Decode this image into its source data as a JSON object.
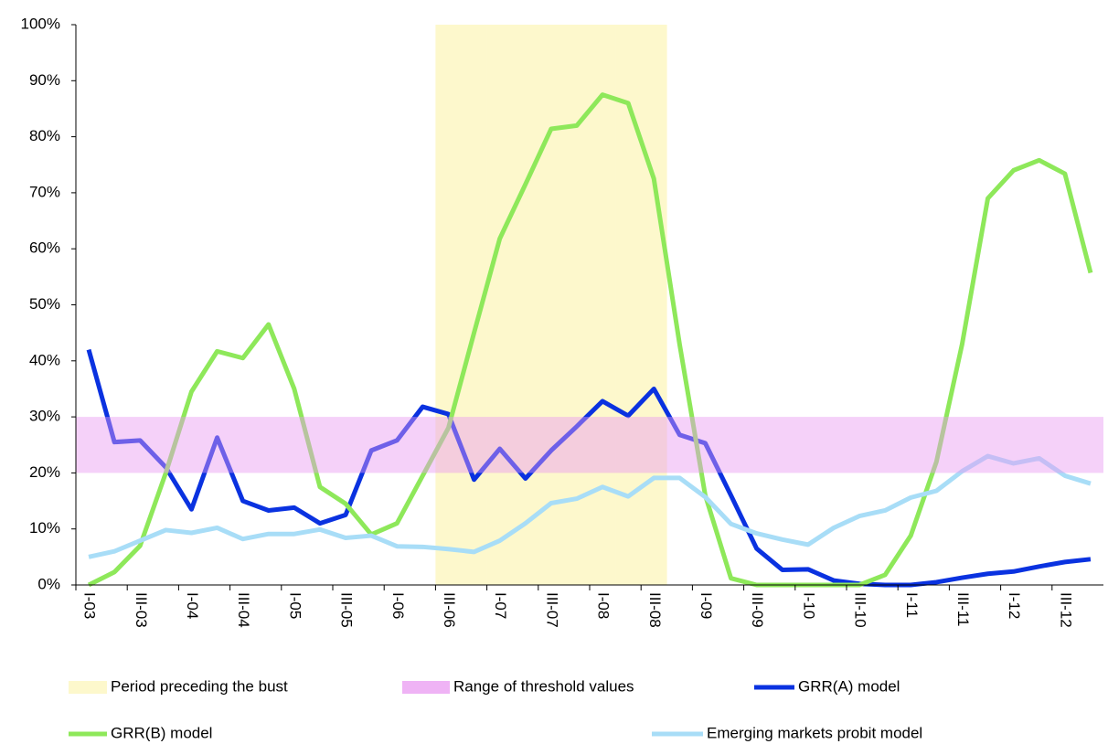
{
  "chart_data": {
    "type": "line",
    "categories": [
      "I-03",
      null,
      "III-03",
      null,
      "I-04",
      null,
      "III-04",
      null,
      "I-05",
      null,
      "III-05",
      null,
      "I-06",
      null,
      "III-06",
      null,
      "I-07",
      null,
      "III-07",
      null,
      "I-08",
      null,
      "III-08",
      null,
      "I-09",
      null,
      "III-09",
      null,
      "I-10",
      null,
      "III-10",
      null,
      "I-11",
      null,
      "III-11",
      null,
      "I-12",
      null,
      "III-12",
      null
    ],
    "ylim": [
      0,
      100
    ],
    "yticks": [
      {
        "value": 0,
        "label": "0%"
      },
      {
        "value": 10,
        "label": "10%"
      },
      {
        "value": 20,
        "label": "20%"
      },
      {
        "value": 30,
        "label": "30%"
      },
      {
        "value": 40,
        "label": "40%"
      },
      {
        "value": 50,
        "label": "50%"
      },
      {
        "value": 60,
        "label": "60%"
      },
      {
        "value": 70,
        "label": "70%"
      },
      {
        "value": 80,
        "label": "80%"
      },
      {
        "value": 90,
        "label": "90%"
      },
      {
        "value": 100,
        "label": "100%"
      }
    ],
    "period": {
      "name": "Period preceding the bust",
      "color": "#fdf8cc",
      "values": [
        0,
        0,
        0,
        0,
        0,
        0,
        0,
        0,
        0,
        0,
        0,
        0,
        0,
        0,
        100,
        100,
        100,
        100,
        100,
        100,
        100,
        100,
        100,
        0,
        0,
        0,
        0,
        0,
        0,
        0,
        0,
        0,
        0,
        0,
        0,
        0,
        0,
        0,
        0,
        0
      ]
    },
    "threshold_range": {
      "name": "Range of threshold values",
      "color": "#e99af2",
      "range": [
        20,
        30
      ]
    },
    "series": [
      {
        "name": "GRR(A) model",
        "color": "#0a32e0",
        "values": [
          42,
          25.5,
          25.8,
          21,
          13.5,
          26.3,
          15,
          13.3,
          13.8,
          11,
          12.5,
          24,
          25.8,
          31.8,
          30.5,
          18.8,
          24.3,
          19,
          24,
          28.3,
          32.8,
          30.2,
          35,
          26.8,
          25.3,
          16,
          6.5,
          2.7,
          2.8,
          0.8,
          0.2,
          0,
          0,
          0.5,
          1.3,
          2,
          2.4,
          3.3,
          4.1,
          4.6
        ]
      },
      {
        "name": "GRR(B) model",
        "color": "#8ee85a",
        "values": [
          0,
          2.3,
          7,
          20,
          34.5,
          41.7,
          40.5,
          46.5,
          35,
          17.5,
          14.5,
          9,
          11,
          19.5,
          28,
          45,
          61.8,
          71.5,
          81.4,
          82,
          87.5,
          86,
          72.5,
          43,
          16,
          1.2,
          0,
          0,
          0,
          0,
          0,
          1.8,
          8.8,
          22,
          43,
          69,
          74,
          75.8,
          73.4,
          55.7
        ]
      },
      {
        "name": "Emerging markets probit model",
        "color": "#a8ddf7",
        "values": [
          5,
          6,
          7.9,
          9.8,
          9.3,
          10.2,
          8.2,
          9.1,
          9.1,
          9.9,
          8.4,
          8.8,
          6.9,
          6.8,
          6.4,
          5.9,
          7.9,
          11,
          14.6,
          15.4,
          17.5,
          15.8,
          19.1,
          19.1,
          15.7,
          10.9,
          9.2,
          8.1,
          7.2,
          10.2,
          12.3,
          13.3,
          15.6,
          16.8,
          20.3,
          23,
          21.7,
          22.6,
          19.5,
          18.1
        ]
      }
    ]
  }
}
